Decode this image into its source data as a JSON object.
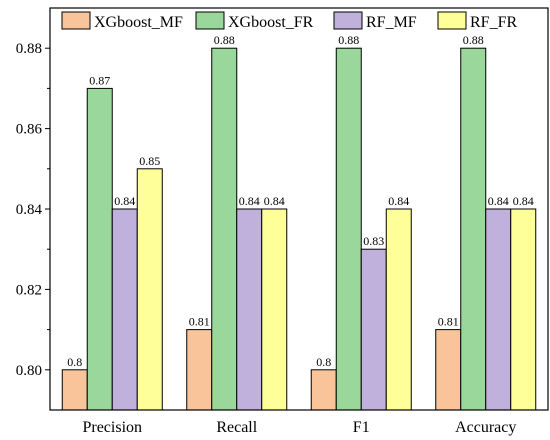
{
  "chart_data": {
    "type": "bar",
    "categories": [
      "Precision",
      "Recall",
      "F1",
      "Accuracy"
    ],
    "series": [
      {
        "name": "XGboost_MF",
        "color": "#F9C49A",
        "values": [
          0.8,
          0.81,
          0.8,
          0.81
        ],
        "labels": [
          "0.8",
          "0.81",
          "0.8",
          "0.81"
        ]
      },
      {
        "name": "XGboost_FR",
        "color": "#9AD79A",
        "values": [
          0.87,
          0.88,
          0.88,
          0.88
        ],
        "labels": [
          "0.87",
          "0.88",
          "0.88",
          "0.88"
        ]
      },
      {
        "name": "RF_MF",
        "color": "#BFB1DC",
        "values": [
          0.84,
          0.84,
          0.83,
          0.84
        ],
        "labels": [
          "0.84",
          "0.84",
          "0.83",
          "0.84"
        ]
      },
      {
        "name": "RF_FR",
        "color": "#FFFF99",
        "values": [
          0.85,
          0.84,
          0.84,
          0.84
        ],
        "labels": [
          "0.85",
          "0.84",
          "0.84",
          "0.84"
        ]
      }
    ],
    "title": "",
    "xlabel": "",
    "ylabel": "",
    "ylim": [
      0.79,
      0.89
    ],
    "yticks": [
      "0.80",
      "0.82",
      "0.84",
      "0.86",
      "0.88"
    ],
    "grid": false,
    "legend_position": "top"
  }
}
